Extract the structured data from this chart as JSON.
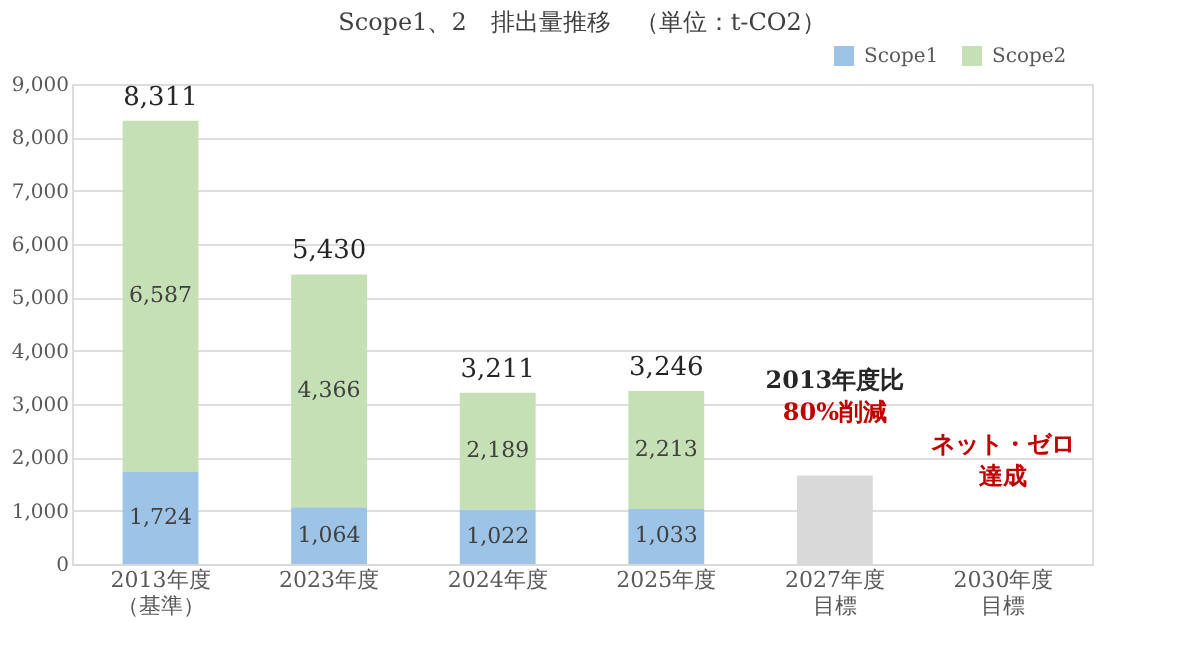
{
  "chart_data": {
    "type": "bar",
    "title": "Scope1、2　排出量推移　（単位：t-CO2）",
    "stacked": true,
    "categories": [
      "2013年度（基準）",
      "2023年度",
      "2024年度",
      "2025年度",
      "2027年度目標",
      "2030年度目標"
    ],
    "series": [
      {
        "name": "Scope1",
        "color": "#9dc3e6",
        "values": [
          1724,
          1064,
          1022,
          1033,
          null,
          null
        ],
        "value_labels": [
          "1,724",
          "1,064",
          "1,022",
          "1,033",
          null,
          null
        ]
      },
      {
        "name": "Scope2",
        "color": "#c5e0b4",
        "values": [
          6587,
          4366,
          2189,
          2213,
          null,
          null
        ],
        "value_labels": [
          "6,587",
          "4,366",
          "2,189",
          "2,213",
          null,
          null
        ]
      },
      {
        "color": "#d9d9d9",
        "values": [
          null,
          null,
          null,
          null,
          1660,
          null
        ]
      }
    ],
    "totals": [
      "8,311",
      "5,430",
      "3,211",
      "3,246",
      null,
      null
    ],
    "annotations": [
      "2013年度比",
      "80%削減",
      "ネット・ゼロ",
      "達成"
    ],
    "ylim": [
      0,
      9000
    ],
    "yticks": [
      0,
      {
        "value": 1000,
        "label": "1,000"
      },
      {
        "value": 2000,
        "label": "2,000"
      },
      {
        "value": 3000,
        "label": "3,000"
      },
      {
        "value": 4000,
        "label": "4,000"
      },
      {
        "value": 5000,
        "label": "5,000"
      },
      {
        "value": 6000,
        "label": "6,000"
      },
      {
        "value": 7000,
        "label": "7,000"
      },
      {
        "value": 8000,
        "label": "8,000"
      },
      {
        "value": 9000,
        "label": "9,000"
      }
    ],
    "grid": "y",
    "legend": "top right"
  }
}
